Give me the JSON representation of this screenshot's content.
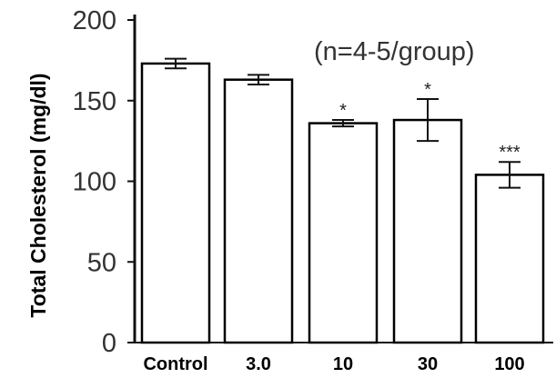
{
  "chart_data": {
    "type": "bar",
    "title": "",
    "xlabel": "",
    "ylabel": "Total Cholesterol (mg/dl)",
    "ylim": [
      0,
      200
    ],
    "yticks": [
      "0",
      "50",
      "100",
      "150",
      "200"
    ],
    "categories": [
      "Control",
      "3.0",
      "10",
      "30",
      "100"
    ],
    "values": [
      173,
      163,
      136,
      138,
      104
    ],
    "errors": [
      3,
      3,
      2,
      13,
      8
    ],
    "significance": [
      "",
      "",
      "*",
      "*",
      "***"
    ],
    "annotation": "(n=4-5/group)",
    "grid": false,
    "bar_color": "#ffffff",
    "edge_color": "#000000"
  }
}
